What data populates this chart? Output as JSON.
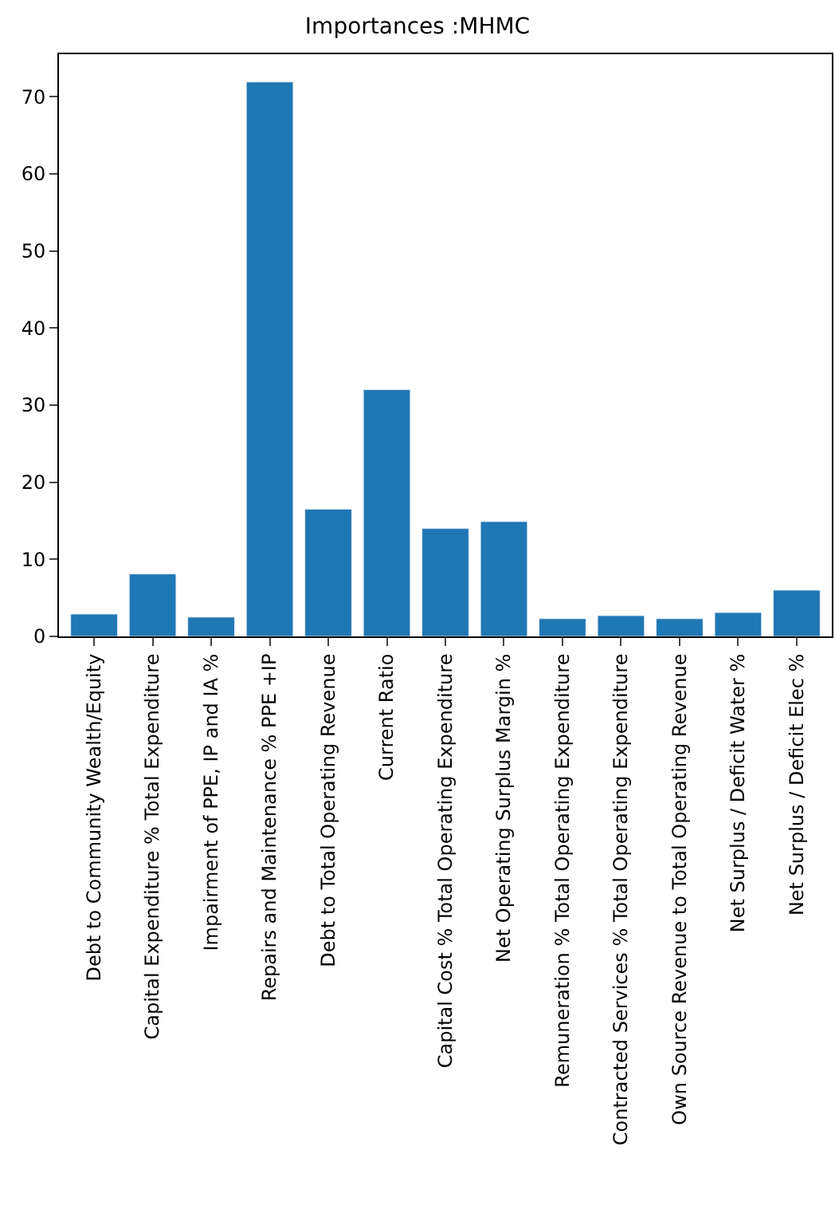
{
  "chart_data": {
    "type": "bar",
    "title": "Importances :MHMC",
    "categories": [
      "Debt to Community Wealth/Equity",
      "Capital Expenditure % Total Expenditure",
      "Impairment of PPE, IP and IA %",
      "Repairs and Maintenance % PPE +IP",
      "Debt to Total Operating Revenue",
      "Current Ratio",
      "Capital Cost % Total Operating Expenditure",
      "Net Operating Surplus Margin %",
      "Remuneration % Total Operating Expenditure",
      "Contracted Services % Total Operating Expenditure",
      "Own Source Revenue to Total Operating Revenue",
      "Net Surplus / Deficit Water %",
      "Net Surplus / Deficit Elec %"
    ],
    "values": [
      2.9,
      8.1,
      2.5,
      71.9,
      16.5,
      32.0,
      14.0,
      14.9,
      2.3,
      2.7,
      2.3,
      3.1,
      6.0
    ],
    "color": "#1f77b4",
    "ylim": [
      0,
      75.5
    ],
    "yticks": [
      0,
      10,
      20,
      30,
      40,
      50,
      60,
      70
    ]
  }
}
